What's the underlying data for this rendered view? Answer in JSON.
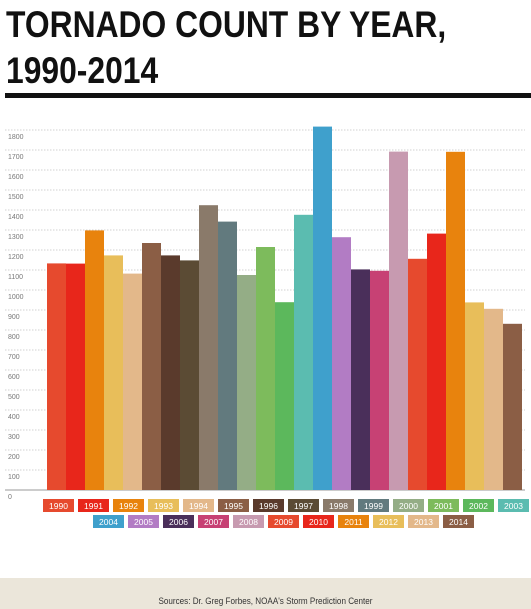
{
  "title": "TORNADO COUNT BY YEAR, 1990-2014",
  "source": "Sources: Dr. Greg Forbes, NOAA's Storm Prediction Center",
  "chart_data": {
    "type": "bar",
    "title": "TORNADO COUNT BY YEAR, 1990-2014",
    "xlabel": "",
    "ylabel": "",
    "ylim": [
      0,
      1850
    ],
    "yticks": [
      0,
      100,
      200,
      300,
      400,
      500,
      600,
      700,
      800,
      900,
      1000,
      1100,
      1200,
      1300,
      1400,
      1500,
      1600,
      1700,
      1800
    ],
    "grid": true,
    "legend_position": "bottom",
    "categories": [
      "1990",
      "1991",
      "1992",
      "1993",
      "1994",
      "1995",
      "1996",
      "1997",
      "1998",
      "1999",
      "2000",
      "2001",
      "2002",
      "2003",
      "2004",
      "2005",
      "2006",
      "2007",
      "2008",
      "2009",
      "2010",
      "2011",
      "2012",
      "2013",
      "2014"
    ],
    "values": [
      1133,
      1132,
      1298,
      1173,
      1082,
      1235,
      1173,
      1148,
      1424,
      1342,
      1075,
      1215,
      939,
      1376,
      1817,
      1264,
      1103,
      1096,
      1692,
      1156,
      1282,
      1691,
      938,
      906,
      831
    ],
    "colors": [
      "#e64a2e",
      "#e8261b",
      "#e8830d",
      "#e8be5a",
      "#e3b88a",
      "#8b5e45",
      "#5a3a2c",
      "#5b4b34",
      "#8a7a6a",
      "#627a7e",
      "#94ad86",
      "#7dbb5c",
      "#5cb85c",
      "#5bbcb0",
      "#3fa0cc",
      "#b27cc4",
      "#4a2f5a",
      "#c74174",
      "#c79ab0",
      "#e64a2e",
      "#e8261b",
      "#e8830d",
      "#e8be5a",
      "#e3b88a",
      "#8b5e45"
    ]
  }
}
